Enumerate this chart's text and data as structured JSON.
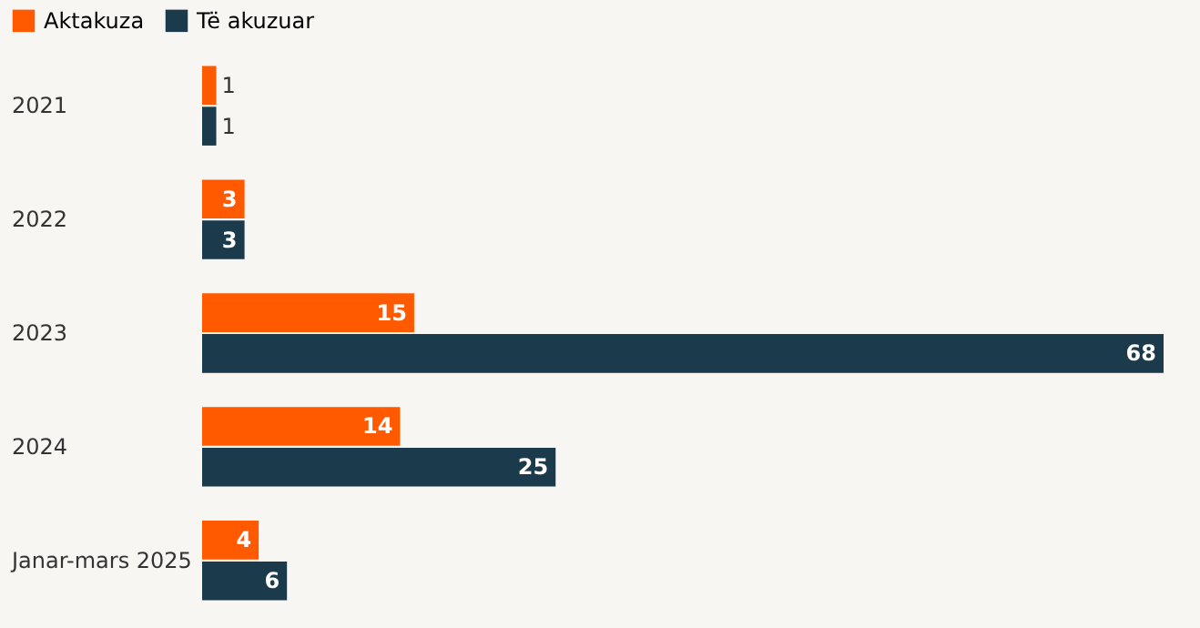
{
  "chart_data": {
    "type": "bar",
    "orientation": "horizontal",
    "categories": [
      "2021",
      "2022",
      "2023",
      "2024",
      "Janar-mars 2025"
    ],
    "series": [
      {
        "name": "Aktakuza",
        "color": "#ff5a00",
        "values": [
          1,
          3,
          15,
          14,
          4
        ]
      },
      {
        "name": "Të akuzuar",
        "color": "#1b3a4b",
        "values": [
          1,
          3,
          68,
          25,
          6
        ]
      }
    ],
    "data_labels": true,
    "legend": "top left",
    "grid": false
  }
}
